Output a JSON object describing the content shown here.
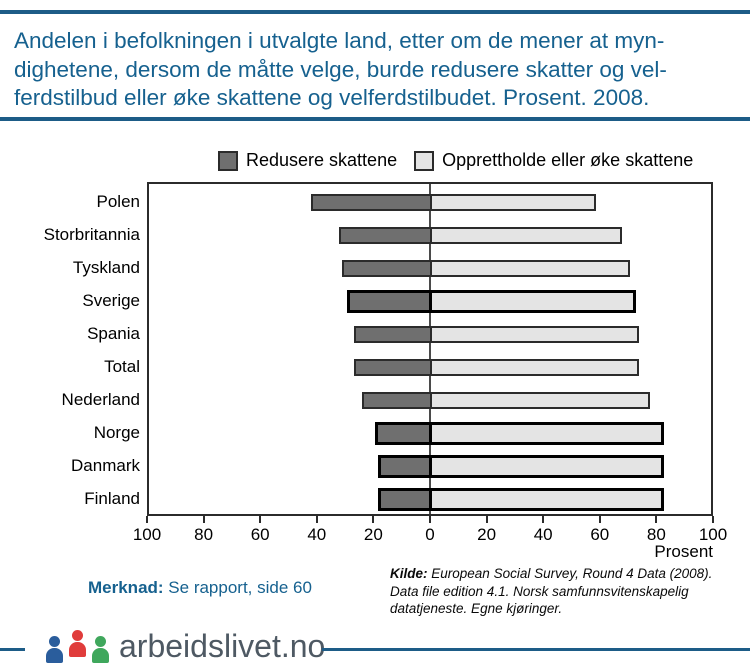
{
  "header": {
    "title_lines": [
      "Andelen i befolkningen i utvalgte land, etter om de mener at myn-",
      "dighetene, dersom de måtte velge, burde redusere skatter og vel-",
      "ferdstilbud eller øke skattene og velferdstilbudet. Prosent. 2008."
    ]
  },
  "legend": {
    "items": [
      {
        "label": "Redusere skattene",
        "color": "#6f6f6f"
      },
      {
        "label": "Opprettholde eller øke skattene",
        "color": "#e4e4e4"
      }
    ]
  },
  "chart_data": {
    "type": "bar",
    "orientation": "horizontal-diverging",
    "categories": [
      "Polen",
      "Storbritannia",
      "Tyskland",
      "Sverige",
      "Spania",
      "Total",
      "Nederland",
      "Norge",
      "Danmark",
      "Finland"
    ],
    "series": [
      {
        "name": "Redusere skattene",
        "side": "left",
        "color": "#6f6f6f",
        "values": [
          42,
          32,
          31,
          29,
          27,
          27,
          24,
          19,
          18,
          18
        ]
      },
      {
        "name": "Opprettholde eller øke skattene",
        "side": "right",
        "color": "#e4e4e4",
        "values": [
          58,
          67,
          70,
          72,
          73,
          73,
          77,
          82,
          82,
          82
        ]
      }
    ],
    "highlighted_categories": [
      "Sverige",
      "Norge",
      "Danmark",
      "Finland"
    ],
    "x_axis": {
      "tick_labels": [
        "100",
        "80",
        "60",
        "40",
        "20",
        "0",
        "20",
        "40",
        "60",
        "80",
        "100"
      ],
      "unit_label": "Prosent",
      "max_each_side": 100,
      "grid": false
    },
    "legend_position": "top"
  },
  "footer": {
    "note_label": "Merknad:",
    "note_text": " Se rapport, side 60",
    "source_label": "Kilde:",
    "source_lines": [
      " European Social Survey, Round 4 Data (2008).",
      "Data file edition 4.1. Norsk samfunnsvitenskapelig",
      "datatjeneste. Egne kjøringer."
    ]
  },
  "logo": {
    "text": "arbeidslivet.no"
  },
  "colors": {
    "accent_blue": "#16618f",
    "rule_blue": "#1d5c87",
    "bar_dark": "#6f6f6f",
    "bar_light": "#e4e4e4",
    "bar_border": "#2b2b2b",
    "highlight_border": "#000000",
    "logo_blue": "#2a5d9c",
    "logo_red": "#e03c3b",
    "logo_green": "#3fa75c",
    "logo_text": "#4e5963"
  }
}
